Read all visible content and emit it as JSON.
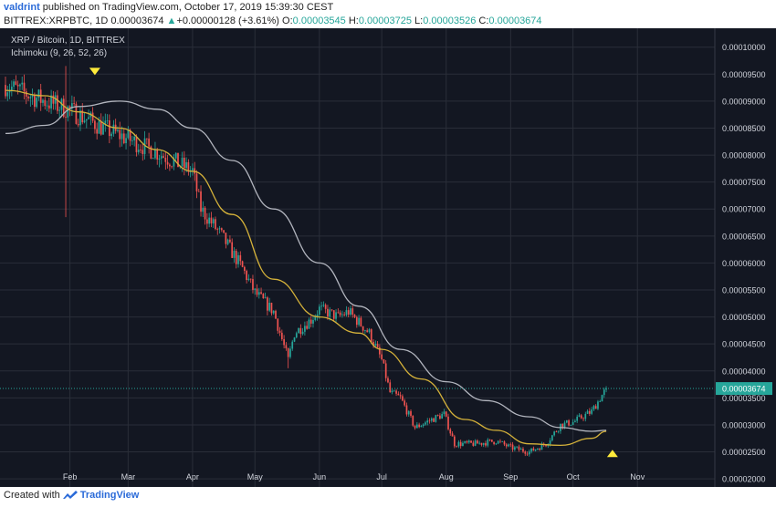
{
  "header": {
    "user": "valdrint",
    "published": " published on TradingView.com, October 17, 2019 15:39:30 CEST",
    "symbol": "BITTREX:XRPBTC, 1D",
    "price": "0.00003674",
    "up_arrow": "▲",
    "change": "+0.00000128 (+3.61%)",
    "o_label": "O:",
    "o": "0.00003545",
    "h_label": "H:",
    "h": "0.00003725",
    "l_label": "L:",
    "l": "0.00003526",
    "c_label": "C:",
    "c": "0.00003674"
  },
  "chart_data": {
    "type": "candlestick",
    "title": "XRP / Bitcoin, 1D, BITTREX",
    "indicator": "Ichimoku (9, 26, 52, 26)",
    "x_tick_labels": [
      "Feb",
      "Mar",
      "Apr",
      "May",
      "Jun",
      "Jul",
      "Aug",
      "Sep",
      "Oct",
      "Nov"
    ],
    "y_tick_labels": [
      "0.00010000",
      "0.00009500",
      "0.00009000",
      "0.00008500",
      "0.00008000",
      "0.00007500",
      "0.00007000",
      "0.00006500",
      "0.00006000",
      "0.00005500",
      "0.00005000",
      "0.00004500",
      "0.00004000",
      "0.00003500",
      "0.00003000",
      "0.00002500",
      "0.00002000"
    ],
    "y_range": [
      1.85e-05,
      0.0001035
    ],
    "last_price_label": "0.00003674",
    "last_price": 3.674e-05,
    "close_series": {
      "dates": [
        "2019-01-01",
        "2019-01-10",
        "2019-01-20",
        "2019-01-31",
        "2019-02-10",
        "2019-02-20",
        "2019-03-01",
        "2019-03-15",
        "2019-04-01",
        "2019-04-05",
        "2019-04-15",
        "2019-04-25",
        "2019-05-01",
        "2019-05-10",
        "2019-05-17",
        "2019-05-20",
        "2019-05-28",
        "2019-06-01",
        "2019-06-10",
        "2019-06-15",
        "2019-06-20",
        "2019-06-25",
        "2019-07-01",
        "2019-07-05",
        "2019-07-10",
        "2019-07-17",
        "2019-07-25",
        "2019-07-31",
        "2019-08-05",
        "2019-08-15",
        "2019-08-25",
        "2019-09-01",
        "2019-09-10",
        "2019-09-18",
        "2019-09-25",
        "2019-10-01",
        "2019-10-10",
        "2019-10-17"
      ],
      "close": [
        9.3e-05,
        9.15e-05,
        9e-05,
        8.85e-05,
        8.65e-05,
        8.45e-05,
        8.3e-05,
        8.05e-05,
        7.7e-05,
        7e-05,
        6.5e-05,
        5.9e-05,
        5.45e-05,
        5.1e-05,
        4.2e-05,
        4.7e-05,
        4.95e-05,
        5.15e-05,
        5e-05,
        5.1e-05,
        4.9e-05,
        4.7e-05,
        4.2e-05,
        3.6e-05,
        3.5e-05,
        2.95e-05,
        3.1e-05,
        3.2e-05,
        2.65e-05,
        2.65e-05,
        2.7e-05,
        2.58e-05,
        2.5e-05,
        2.65e-05,
        3e-05,
        3.05e-05,
        3.25e-05,
        3.67e-05
      ]
    },
    "line_white": {
      "dates": [
        "2019-01-01",
        "2019-01-20",
        "2019-02-05",
        "2019-02-25",
        "2019-03-15",
        "2019-04-01",
        "2019-04-20",
        "2019-05-10",
        "2019-06-01",
        "2019-06-20",
        "2019-07-10",
        "2019-08-01",
        "2019-08-20",
        "2019-09-10",
        "2019-09-25",
        "2019-10-10",
        "2019-10-17"
      ],
      "values": [
        8.4e-05,
        8.55e-05,
        8.9e-05,
        9e-05,
        8.85e-05,
        8.5e-05,
        7.9e-05,
        7e-05,
        6e-05,
        5.2e-05,
        4.4e-05,
        3.8e-05,
        3.45e-05,
        3.15e-05,
        2.95e-05,
        2.88e-05,
        2.9e-05
      ]
    },
    "line_yellow": {
      "dates": [
        "2019-01-01",
        "2019-01-20",
        "2019-02-05",
        "2019-02-25",
        "2019-03-15",
        "2019-04-01",
        "2019-04-20",
        "2019-05-10",
        "2019-06-01",
        "2019-06-20",
        "2019-07-01",
        "2019-07-20",
        "2019-08-10",
        "2019-08-25",
        "2019-09-10",
        "2019-09-25",
        "2019-10-10",
        "2019-10-17"
      ],
      "values": [
        9.2e-05,
        9.1e-05,
        8.8e-05,
        8.5e-05,
        8.1e-05,
        7.7e-05,
        6.9e-05,
        5.7e-05,
        5e-05,
        4.7e-05,
        4.4e-05,
        3.85e-05,
        3.1e-05,
        2.9e-05,
        2.65e-05,
        2.62e-05,
        2.75e-05,
        2.88e-05
      ]
    },
    "markers": [
      {
        "type": "down-triangle",
        "date": "2019-02-13",
        "value": 9.55e-05,
        "color": "#ffeb3b"
      },
      {
        "type": "up-triangle",
        "date": "2019-10-20",
        "value": 2.47e-05,
        "color": "#ffeb3b"
      }
    ],
    "colors": {
      "up": "#26a69a",
      "down": "#ef5350",
      "white_line": "#b2b5be",
      "yellow_line": "#d4b13a",
      "background": "#131722",
      "grid": "#2a2e39"
    }
  },
  "footer": {
    "created_with": "Created with",
    "brand": "TradingView"
  }
}
